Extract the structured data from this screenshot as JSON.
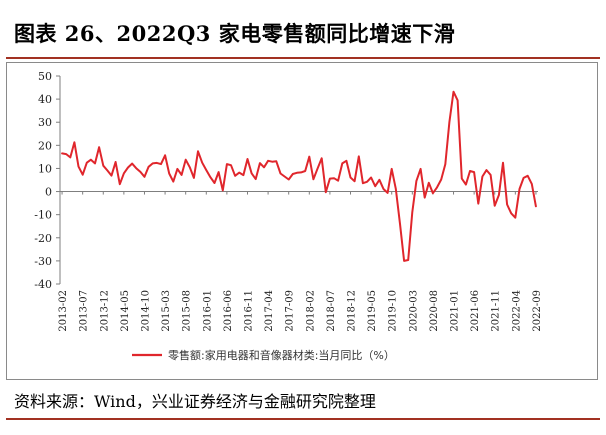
{
  "title": "图表 26、2022Q3 家电零售额同比增速下滑",
  "source": "资料来源：Wind，兴业证券经济与金融研究院整理",
  "colors": {
    "series": "#e0262c",
    "rule": "#a23122",
    "axis": "#7f7f7f"
  },
  "chart_data": {
    "type": "line",
    "ylim": [
      -40,
      50
    ],
    "yticks": [
      50,
      40,
      30,
      20,
      10,
      0,
      -10,
      -20,
      -30,
      -40
    ],
    "xtick_labels": [
      "2013-02",
      "2013-07",
      "2013-12",
      "2014-05",
      "2014-10",
      "2015-03",
      "2015-08",
      "2016-01",
      "2016-06",
      "2016-11",
      "2017-04",
      "2017-09",
      "2018-02",
      "2018-07",
      "2018-12",
      "2019-05",
      "2019-10",
      "2020-03",
      "2020-08",
      "2021-01",
      "2021-06",
      "2021-11",
      "2022-04",
      "2022-09"
    ],
    "legend": {
      "position": "bottom",
      "label": "零售额:家用电器和音像器材类:当月同比（%）"
    },
    "series": [
      {
        "name": "零售额:家用电器和音像器材类:当月同比（%）",
        "start": "2013-02",
        "values": [
          16.5,
          16.2,
          14.8,
          21.3,
          10.8,
          7.3,
          12.5,
          13.8,
          12.2,
          19.2,
          11.2,
          9.1,
          6.9,
          12.8,
          3.2,
          7.9,
          10.4,
          12.1,
          10.1,
          8.5,
          6.4,
          10.7,
          12.2,
          12.4,
          11.9,
          15.7,
          7.8,
          4.3,
          9.8,
          7.2,
          13.8,
          10.5,
          5.9,
          17.4,
          12.5,
          9.3,
          6.2,
          3.7,
          8.4,
          0.5,
          11.9,
          11.4,
          6.8,
          8.2,
          7.1,
          14.1,
          7.9,
          5.4,
          12.3,
          10.5,
          13.3,
          12.9,
          13.1,
          7.8,
          6.5,
          5.2,
          7.6,
          8.1,
          8.3,
          8.9,
          15.1,
          5.3,
          9.9,
          14.4,
          -0.3,
          5.6,
          5.8,
          4.7,
          12.2,
          13.3,
          6.1,
          4.5,
          15.2,
          3.6,
          4.2,
          6.1,
          2.3,
          5.1,
          1.1,
          -0.6,
          9.8,
          1.2,
          -14.0,
          -30.0,
          -29.6,
          -8.9,
          4.6,
          9.8,
          -2.6,
          3.8,
          -0.7,
          1.8,
          5.2,
          11.8,
          30.1,
          43.2,
          39.5,
          5.6,
          3.0,
          8.9,
          8.4,
          -5.2,
          6.5,
          9.3,
          7.2,
          -6.1,
          -1.5,
          12.5,
          -5.6,
          -9.4,
          -11.3,
          1.1,
          5.9,
          6.8,
          3.3,
          -6.4
        ]
      }
    ]
  }
}
